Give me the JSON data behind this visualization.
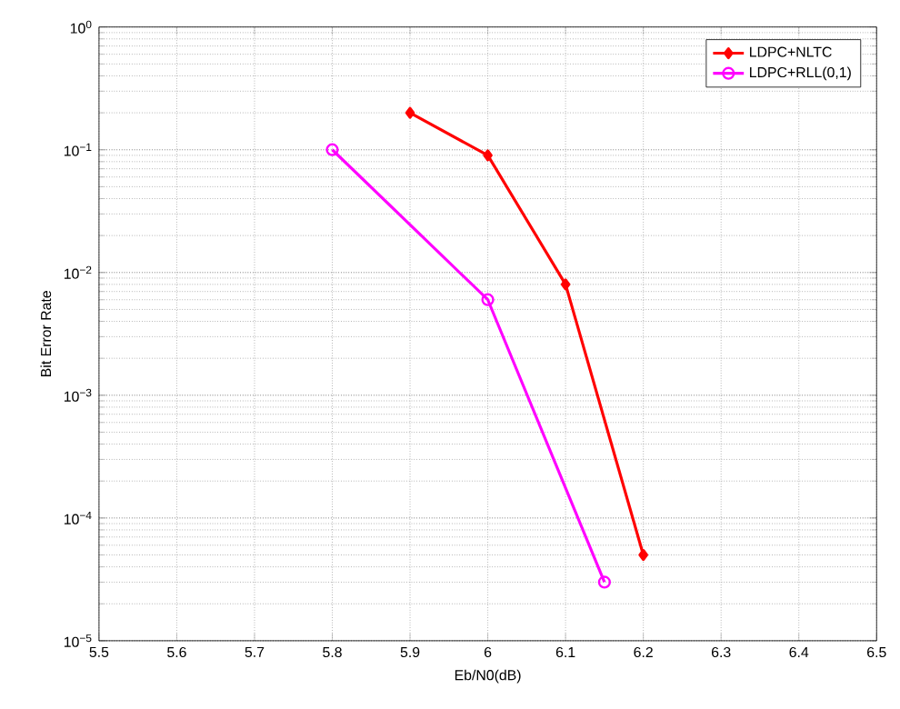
{
  "chart_data": {
    "type": "line",
    "xlabel": "Eb/N0(dB)",
    "ylabel": "Bit Error Rate",
    "log": "y",
    "grid": true,
    "legend": "top right",
    "line_style": "solid",
    "xlim": [
      5.5,
      6.5
    ],
    "xticks": [
      5.5,
      5.6,
      5.7,
      5.8,
      5.9,
      6,
      6.1,
      6.2,
      6.3,
      6.4,
      6.5
    ],
    "ylim": [
      1e-05,
      1
    ],
    "yticks": [
      {
        "value": 1e-05,
        "label": "10$^{−5}$"
      },
      {
        "value": 0.0001,
        "label": "10$^{−4}$"
      },
      {
        "value": 0.001,
        "label": "10$^{−3}$"
      },
      {
        "value": 0.01,
        "label": "10$^{−2}$"
      },
      {
        "value": 0.1,
        "label": "10$^{−1}$"
      },
      {
        "value": 1,
        "label": "10$^{0}$"
      }
    ],
    "series": [
      {
        "name": "LDPC+NLTC",
        "color": "#ff0000",
        "marker": "diamond",
        "x": [
          5.9,
          6.0,
          6.1,
          6.2
        ],
        "values": [
          0.2,
          0.09,
          0.008,
          5e-05
        ]
      },
      {
        "name": "LDPC+RLL(0,1)",
        "color": "#ff00ff",
        "marker": "circle",
        "x": [
          5.8,
          6.0,
          6.15
        ],
        "values": [
          0.1,
          0.006,
          3e-05
        ]
      }
    ]
  }
}
